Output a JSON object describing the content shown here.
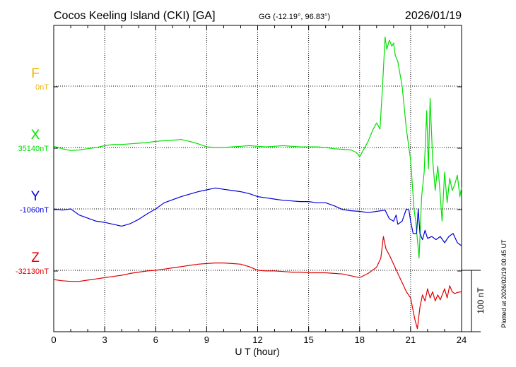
{
  "header": {
    "station": "Cocos Keeling Island (CKI)  [GA]",
    "coords": "GG (-12.19°,  96.83°)",
    "date": "2026/01/19"
  },
  "chart_data": {
    "type": "line",
    "xlabel": "U T (hour)",
    "xlim": [
      0,
      24
    ],
    "xticks": [
      "0",
      "3",
      "6",
      "9",
      "12",
      "15",
      "18",
      "21",
      "24"
    ],
    "scale_bar_label": "100 nT",
    "plotted_note": "Plotted at 2026/02/19 00:45 UT",
    "colors": {
      "F": "#f0b400",
      "X": "#00e000",
      "Y": "#0000dd",
      "Z": "#e00000"
    },
    "series": [
      {
        "name": "F",
        "baseline": "0nT",
        "x": [],
        "y": []
      },
      {
        "name": "X",
        "baseline": "35140nT",
        "x": [
          0,
          0.5,
          1.0,
          1.5,
          2.0,
          2.5,
          3.0,
          3.5,
          4.0,
          4.5,
          5.0,
          5.5,
          6.0,
          6.5,
          7.0,
          7.5,
          8.0,
          8.5,
          9.0,
          9.5,
          10.0,
          10.5,
          11.0,
          11.5,
          12.0,
          12.5,
          13.0,
          13.5,
          14.0,
          14.5,
          15.0,
          15.5,
          16.0,
          16.5,
          17.0,
          17.5,
          17.8,
          18.0,
          18.2,
          18.5,
          18.8,
          19.0,
          19.2,
          19.35,
          19.5,
          19.6,
          19.75,
          19.9,
          20.0,
          20.1,
          20.25,
          20.5,
          20.75,
          21.0,
          21.1,
          21.2,
          21.3,
          21.4,
          21.5,
          21.65,
          21.8,
          21.95,
          22.05,
          22.15,
          22.3,
          22.45,
          22.6,
          22.7,
          22.85,
          23.0,
          23.15,
          23.3,
          23.45,
          23.6,
          23.75,
          23.9,
          24.0
        ],
        "y": [
          2,
          -2,
          -5,
          -4,
          -2,
          0,
          3,
          5,
          5,
          6,
          7,
          8,
          10,
          11,
          12,
          13,
          10,
          6,
          1,
          0,
          0,
          1,
          2,
          3,
          2,
          1,
          2,
          3,
          2,
          1,
          1,
          1,
          0,
          -2,
          -3,
          -4,
          -8,
          -15,
          -5,
          10,
          30,
          40,
          30,
          100,
          180,
          160,
          175,
          165,
          170,
          150,
          140,
          100,
          30,
          -20,
          -60,
          -100,
          -120,
          -150,
          -180,
          -80,
          -40,
          60,
          -35,
          80,
          -20,
          -70,
          -30,
          -60,
          -120,
          -40,
          -90,
          -50,
          -70,
          -60,
          -45,
          -80,
          -65
        ]
      },
      {
        "name": "Y",
        "baseline": "-1060nT",
        "x": [
          0,
          0.5,
          1.0,
          1.5,
          2.0,
          2.5,
          3.0,
          3.5,
          4.0,
          4.5,
          5.0,
          5.5,
          6.0,
          6.5,
          7.0,
          7.5,
          8.0,
          8.5,
          9.0,
          9.5,
          10.0,
          10.5,
          11.0,
          11.5,
          12.0,
          12.5,
          13.0,
          13.5,
          14.0,
          14.5,
          15.0,
          15.5,
          16.0,
          16.5,
          17.0,
          17.5,
          18.0,
          18.5,
          19.0,
          19.5,
          19.75,
          20.0,
          20.15,
          20.25,
          20.5,
          20.75,
          20.9,
          21.0,
          21.15,
          21.35,
          21.45,
          21.55,
          21.7,
          21.85,
          22.0,
          22.25,
          22.5,
          22.75,
          23.0,
          23.25,
          23.5,
          23.75,
          24.0
        ],
        "y": [
          0,
          -2,
          0,
          -10,
          -15,
          -20,
          -22,
          -25,
          -28,
          -24,
          -17,
          -8,
          0,
          10,
          15,
          20,
          24,
          28,
          31,
          34,
          32,
          30,
          28,
          25,
          20,
          18,
          16,
          14,
          13,
          12,
          12,
          10,
          10,
          5,
          -1,
          -3,
          -4,
          -6,
          -4,
          -2,
          -16,
          -20,
          -10,
          -25,
          -20,
          0,
          -2,
          -20,
          -40,
          -40,
          0,
          -40,
          -50,
          -35,
          -48,
          -45,
          -50,
          -45,
          -55,
          -45,
          -40,
          -55,
          -60
        ]
      },
      {
        "name": "Z",
        "baseline": "-32130nT",
        "x": [
          0,
          0.5,
          1.0,
          1.5,
          2.0,
          2.5,
          3.0,
          3.5,
          4.0,
          4.5,
          5.0,
          5.5,
          6.0,
          6.5,
          7.0,
          7.5,
          8.0,
          8.5,
          9.0,
          9.5,
          10.0,
          10.5,
          11.0,
          11.5,
          12.0,
          12.5,
          13.0,
          13.5,
          14.0,
          14.5,
          15.0,
          15.5,
          16.0,
          16.5,
          17.0,
          17.5,
          18.0,
          18.5,
          19.0,
          19.25,
          19.4,
          19.55,
          19.75,
          20.0,
          20.25,
          20.5,
          20.75,
          21.0,
          21.25,
          21.4,
          21.55,
          21.7,
          21.85,
          22.0,
          22.15,
          22.3,
          22.45,
          22.6,
          22.75,
          23.0,
          23.15,
          23.3,
          23.45,
          23.6,
          23.75,
          24.0
        ],
        "y": [
          -15,
          -17,
          -18,
          -18,
          -16,
          -14,
          -12,
          -10,
          -8,
          -5,
          -3,
          -1,
          0,
          2,
          4,
          6,
          8,
          10,
          11,
          12,
          12,
          11,
          10,
          6,
          0,
          -1,
          -1,
          -2,
          -3,
          -3,
          -4,
          -4,
          -4,
          -5,
          -6,
          -9,
          -12,
          -5,
          5,
          20,
          55,
          35,
          25,
          10,
          -5,
          -20,
          -35,
          -45,
          -80,
          -95,
          -60,
          -40,
          -50,
          -30,
          -45,
          -35,
          -50,
          -40,
          -48,
          -30,
          -45,
          -25,
          -35,
          -38,
          -36,
          -35
        ]
      }
    ]
  }
}
